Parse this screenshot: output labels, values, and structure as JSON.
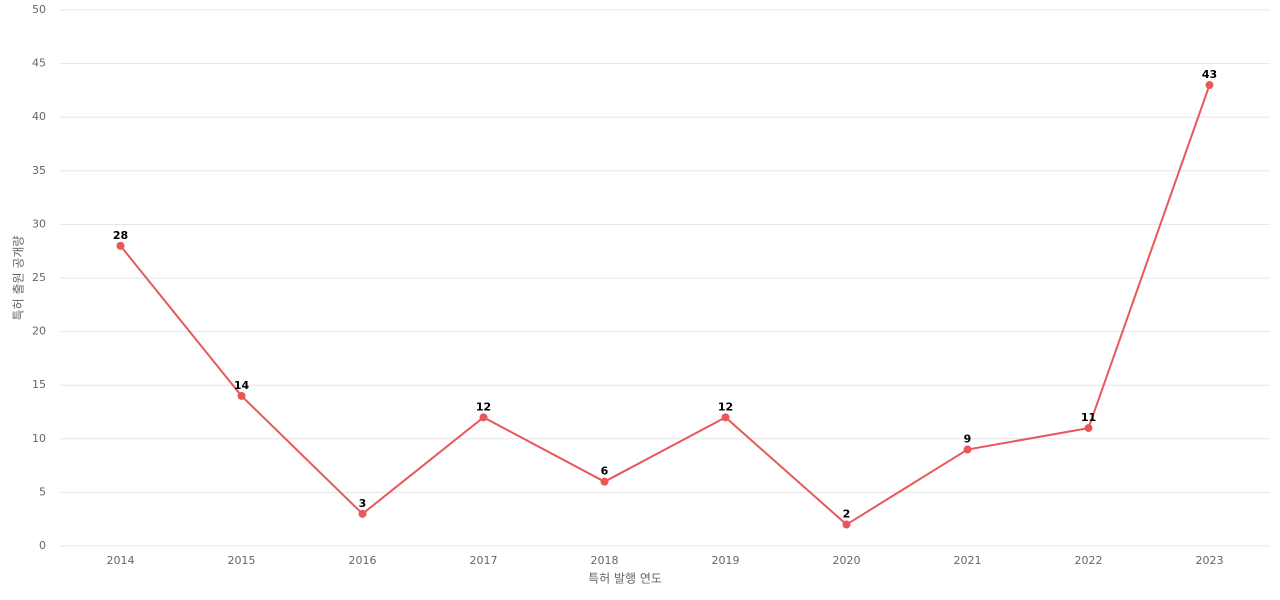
{
  "chart_data": {
    "type": "line",
    "x_label": "특허 발행 연도",
    "y_label": "특허 출원 공개량",
    "categories": [
      "2014",
      "2015",
      "2016",
      "2017",
      "2018",
      "2019",
      "2020",
      "2021",
      "2022",
      "2023"
    ],
    "values": [
      28,
      14,
      3,
      12,
      6,
      12,
      2,
      9,
      11,
      43
    ],
    "color": "#e8585a",
    "ylim": [
      0,
      50
    ],
    "yticks": [
      0,
      5,
      10,
      15,
      20,
      25,
      30,
      35,
      40,
      45,
      50
    ],
    "grid": true
  }
}
